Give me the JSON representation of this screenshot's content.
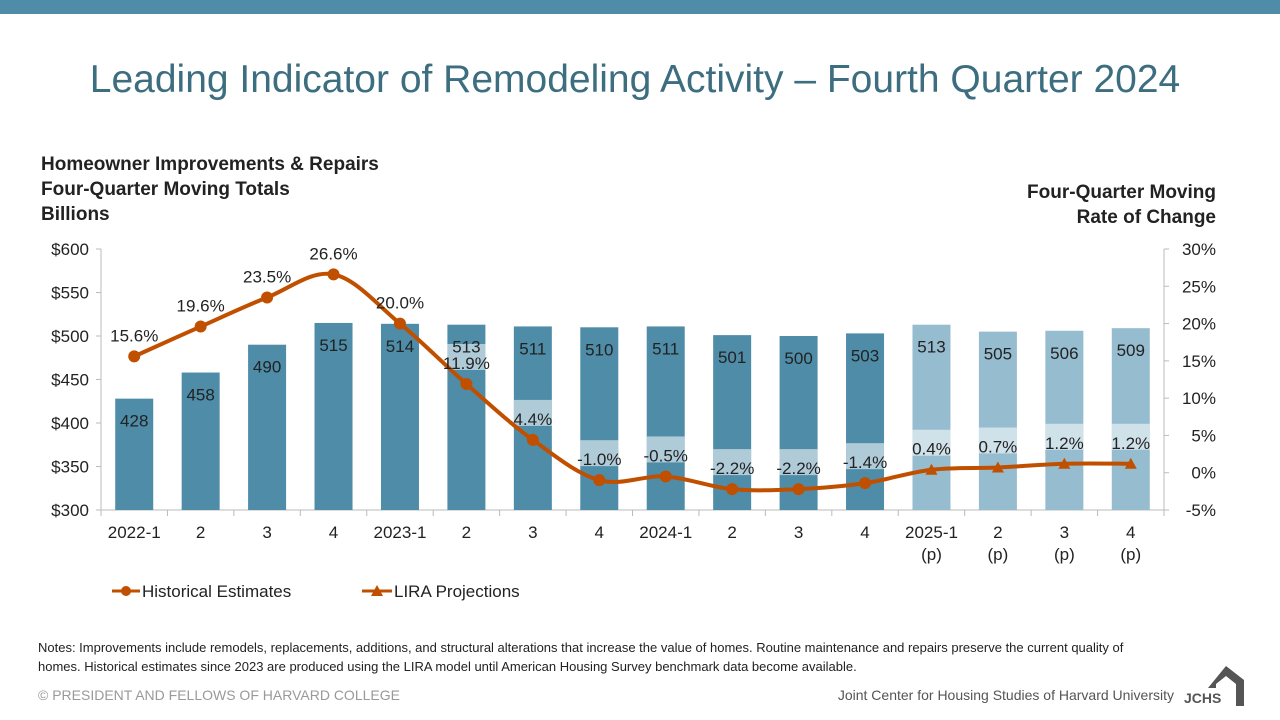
{
  "title": "Leading Indicator of Remodeling Activity – Fourth Quarter 2024",
  "colors": {
    "topbar": "#4E8CA8",
    "title": "#3C6E80",
    "historical_bar": "#4E8CA8",
    "projection_bar": "#96BCCF",
    "line": "#C05000"
  },
  "chart_data": {
    "type": "bar",
    "left_axis_title": [
      "Homeowner Improvements & Repairs",
      "Four-Quarter Moving Totals",
      "Billions"
    ],
    "right_axis_title": [
      "Four-Quarter Moving",
      "Rate of Change"
    ],
    "categories": [
      [
        "2022-1"
      ],
      [
        "2"
      ],
      [
        "3"
      ],
      [
        "4"
      ],
      [
        "2023-1"
      ],
      [
        "2"
      ],
      [
        "3"
      ],
      [
        "4"
      ],
      [
        "2024-1"
      ],
      [
        "2"
      ],
      [
        "3"
      ],
      [
        "4"
      ],
      [
        "2025-1",
        "(p)"
      ],
      [
        "2",
        "(p)"
      ],
      [
        "3",
        "(p)"
      ],
      [
        "4",
        "(p)"
      ]
    ],
    "bar_values": [
      428,
      458,
      490,
      515,
      514,
      513,
      511,
      510,
      511,
      501,
      500,
      503,
      513,
      505,
      506,
      509
    ],
    "bar_labels": [
      "428",
      "458",
      "490",
      "515",
      "514",
      "513",
      "511",
      "510",
      "511",
      "501",
      "500",
      "503",
      "513",
      "505",
      "506",
      "509"
    ],
    "projected": [
      false,
      false,
      false,
      false,
      false,
      false,
      false,
      false,
      false,
      false,
      false,
      false,
      true,
      true,
      true,
      true
    ],
    "rate_values": [
      15.6,
      19.6,
      23.5,
      26.6,
      20.0,
      11.9,
      4.4,
      -1.0,
      -0.5,
      -2.2,
      -2.2,
      -1.4,
      0.4,
      0.7,
      1.2,
      1.2
    ],
    "rate_labels": [
      "15.6%",
      "19.6%",
      "23.5%",
      "26.6%",
      "20.0%",
      "11.9%",
      "4.4%",
      "-1.0%",
      "-0.5%",
      "-2.2%",
      "-2.2%",
      "-1.4%",
      "0.4%",
      "0.7%",
      "1.2%",
      "1.2%"
    ],
    "left_ylim": [
      300,
      600
    ],
    "left_ticks": [
      "$300",
      "$350",
      "$400",
      "$450",
      "$500",
      "$550",
      "$600"
    ],
    "right_ylim": [
      -5,
      30
    ],
    "right_ticks": [
      "-5%",
      "0%",
      "5%",
      "10%",
      "15%",
      "20%",
      "25%",
      "30%"
    ],
    "legend": [
      "Historical Estimates",
      "LIRA Projections"
    ],
    "legend_position": "bottom-left",
    "grid": false
  },
  "notes": "Notes: Improvements include remodels, replacements, additions, and structural alterations that increase the value of homes. Routine maintenance and repairs preserve the current quality of homes. Historical estimates since 2023 are produced using the LIRA model until American Housing Survey benchmark data become available.",
  "footer": {
    "copyright": "© PRESIDENT AND FELLOWS OF HARVARD COLLEGE",
    "institution": "Joint Center for Housing Studies of Harvard University",
    "logo": "JCHS"
  }
}
